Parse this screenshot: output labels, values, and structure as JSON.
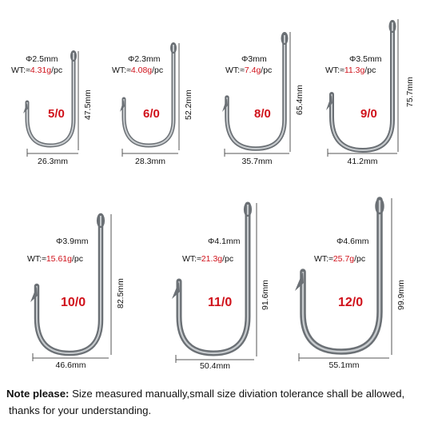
{
  "hooks": [
    {
      "diameter": "Φ2.5mm",
      "wt_prefix": "WT:≈",
      "weight": "4.31g",
      "wt_suffix": "/pc",
      "size": "5/0",
      "height": "47.5mm",
      "width": "26.3mm"
    },
    {
      "diameter": "Φ2.3mm",
      "wt_prefix": "WT:≈",
      "weight": "4.08g",
      "wt_suffix": "/pc",
      "size": "6/0",
      "height": "52.2mm",
      "width": "28.3mm"
    },
    {
      "diameter": "Φ3mm",
      "wt_prefix": "WT:≈",
      "weight": "7.4g",
      "wt_suffix": "/pc",
      "size": "8/0",
      "height": "65.4mm",
      "width": "35.7mm"
    },
    {
      "diameter": "Φ3.5mm",
      "wt_prefix": "WT:≈",
      "weight": "11.3g",
      "wt_suffix": "/pc",
      "size": "9/0",
      "height": "75.7mm",
      "width": "41.2mm"
    },
    {
      "diameter": "Φ3.9mm",
      "wt_prefix": "WT:≈",
      "weight": "15.61g",
      "wt_suffix": "/pc",
      "size": "10/0",
      "height": "82.5mm",
      "width": "46.6mm"
    },
    {
      "diameter": "Φ4.1mm",
      "wt_prefix": "WT:≈",
      "weight": "21.3g",
      "wt_suffix": "/pc",
      "size": "11/0",
      "height": "91.6mm",
      "width": "50.4mm"
    },
    {
      "diameter": "Φ4.6mm",
      "wt_prefix": "WT:≈",
      "weight": "25.7g",
      "wt_suffix": "/pc",
      "size": "12/0",
      "height": "99.9mm",
      "width": "55.1mm"
    }
  ],
  "note": {
    "label": "Note please:",
    "text": " Size measured manually,small size diviation tolerance shall be allowed,",
    "line2": "thanks for your understanding."
  },
  "colors": {
    "accent_red": "#d0121b",
    "hook_steel": "#8a8f94"
  }
}
